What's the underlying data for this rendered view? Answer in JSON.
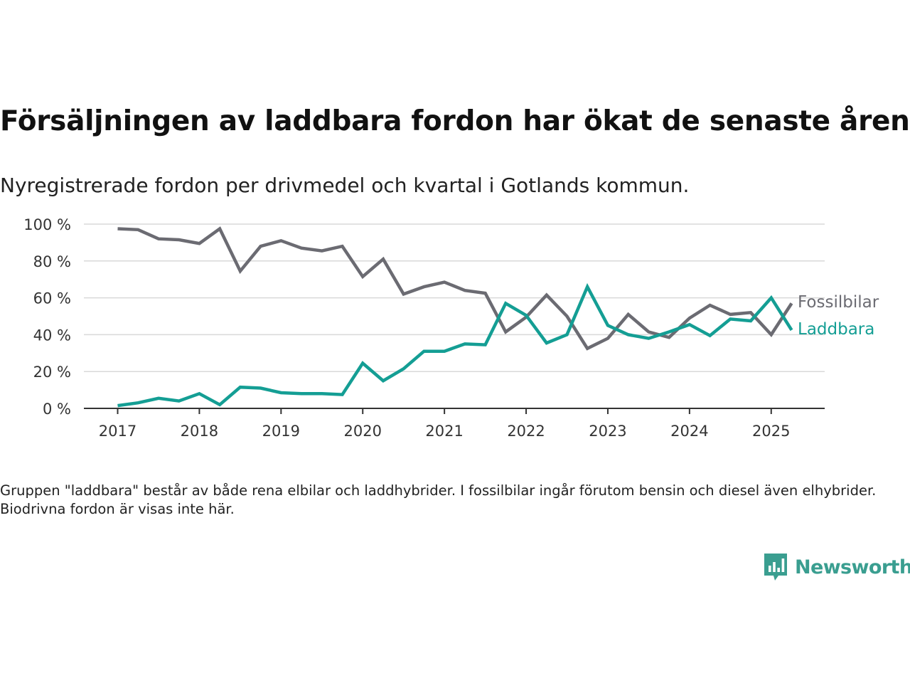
{
  "title": "Försäljningen av laddbara fordon har ökat de senaste åren",
  "subtitle": "Nyregistrerade fordon per drivmedel och kvartal i Gotlands kommun.",
  "note": "Gruppen \"laddbara\" består av både rena elbilar och laddhybrider. I fossilbilar ingår förutom bensin och diesel även elhybrider. Biodrivna fordon är visas inte här.",
  "brand": {
    "name": "Newsworthy",
    "color": "#3a9e90",
    "icon": "newsworthy-logo-icon"
  },
  "chart_data": {
    "type": "line",
    "x": [
      "2017-Q1",
      "2017-Q2",
      "2017-Q3",
      "2017-Q4",
      "2018-Q1",
      "2018-Q2",
      "2018-Q3",
      "2018-Q4",
      "2019-Q1",
      "2019-Q2",
      "2019-Q3",
      "2019-Q4",
      "2020-Q1",
      "2020-Q2",
      "2020-Q3",
      "2020-Q4",
      "2021-Q1",
      "2021-Q2",
      "2021-Q3",
      "2021-Q4",
      "2022-Q1",
      "2022-Q2",
      "2022-Q3",
      "2022-Q4",
      "2023-Q1",
      "2023-Q2",
      "2023-Q3",
      "2023-Q4",
      "2024-Q1",
      "2024-Q2",
      "2024-Q3",
      "2024-Q4",
      "2025-Q1",
      "2025-Q2"
    ],
    "x_tick_labels": [
      "2017",
      "2018",
      "2019",
      "2020",
      "2021",
      "2022",
      "2023",
      "2024",
      "2025"
    ],
    "y_tick_labels": [
      "0 %",
      "20 %",
      "40 %",
      "60 %",
      "80 %",
      "100 %"
    ],
    "ylim": [
      0,
      100
    ],
    "y_ticks": [
      0,
      20,
      40,
      60,
      80,
      100
    ],
    "y_unit": "%",
    "grid": true,
    "legend": "inline labels at line ends (right)",
    "series": [
      {
        "name": "Fossilbilar",
        "color": "#6b6b72",
        "values": [
          97.5,
          97,
          92,
          91.5,
          89.5,
          97.5,
          74.5,
          88,
          91,
          87,
          85.5,
          88,
          71.5,
          81,
          62,
          66,
          68.5,
          64,
          62.5,
          41.5,
          49.5,
          61.5,
          50,
          32.5,
          38,
          51,
          41.5,
          38.5,
          49,
          56,
          51,
          52,
          40,
          57
        ]
      },
      {
        "name": "Laddbara",
        "color": "#149e94",
        "values": [
          1.5,
          3,
          5.5,
          4,
          8,
          2,
          11.5,
          11,
          8.5,
          8,
          8,
          7.5,
          24.5,
          15,
          21.5,
          31,
          31,
          35,
          34.5,
          57,
          50.5,
          35.5,
          40,
          66,
          45,
          40,
          38,
          41.5,
          45.5,
          39.5,
          48.5,
          47.5,
          60,
          42.5
        ]
      }
    ]
  }
}
